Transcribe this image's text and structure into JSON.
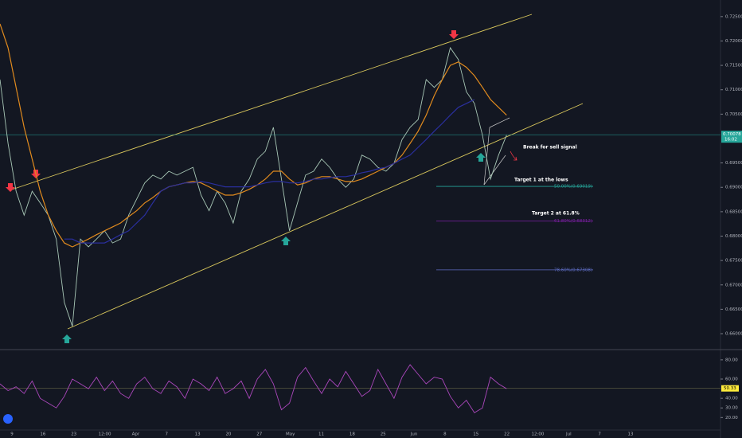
{
  "chart_data": [
    {
      "type": "line",
      "ylim": [
        0.6569,
        0.7284
      ],
      "yticks": [
        {
          "value": 0.725,
          "label": "0.72500"
        },
        {
          "value": 0.72,
          "label": "0.72000"
        },
        {
          "value": 0.715,
          "label": "0.71500"
        },
        {
          "value": 0.71,
          "label": "0.71000"
        },
        {
          "value": 0.705,
          "label": "0.70500"
        },
        {
          "value": 0.695,
          "label": "0.69500"
        },
        {
          "value": 0.69,
          "label": "0.69000"
        },
        {
          "value": 0.685,
          "label": "0.68500"
        },
        {
          "value": 0.68,
          "label": "0.68000"
        },
        {
          "value": 0.675,
          "label": "0.67500"
        },
        {
          "value": 0.67,
          "label": "0.67000"
        },
        {
          "value": 0.665,
          "label": "0.66500"
        },
        {
          "value": 0.66,
          "label": "0.66000"
        }
      ],
      "series": [
        {
          "color": "#a8c7b6",
          "values": [
            0.7121,
            0.699,
            0.6892,
            0.6843,
            0.6892,
            0.6868,
            0.6843,
            0.6794,
            0.6664,
            0.6615,
            0.6794,
            0.6778,
            0.6794,
            0.6811,
            0.6786,
            0.6794,
            0.6843,
            0.6876,
            0.6909,
            0.6925,
            0.6917,
            0.6933,
            0.6925,
            0.6933,
            0.6941,
            0.6884,
            0.6852,
            0.6892,
            0.6868,
            0.6827,
            0.6892,
            0.6917,
            0.6958,
            0.6974,
            0.7023,
            0.6917,
            0.6811,
            0.6868,
            0.6925,
            0.6933,
            0.6958,
            0.6941,
            0.6917,
            0.69,
            0.6917,
            0.6966,
            0.6958,
            0.6941,
            0.6933,
            0.6949,
            0.6998,
            0.7023,
            0.7039,
            0.7121,
            0.7105,
            0.7121,
            0.7186,
            0.7162,
            0.7096,
            0.7072,
            0.7007,
            0.6917,
            0.6966,
            0.7007
          ]
        },
        {
          "color": "#e08a1e",
          "values": [
            0.7235,
            0.7186,
            0.7105,
            0.7023,
            0.6958,
            0.6892,
            0.6843,
            0.6811,
            0.6786,
            0.6778,
            0.6786,
            0.6794,
            0.6803,
            0.6811,
            0.6819,
            0.6827,
            0.684,
            0.6852,
            0.6868,
            0.6879,
            0.6892,
            0.6901,
            0.6905,
            0.6909,
            0.6912,
            0.6909,
            0.6901,
            0.6892,
            0.6884,
            0.6884,
            0.6889,
            0.6896,
            0.6905,
            0.6917,
            0.6933,
            0.6933,
            0.6917,
            0.6905,
            0.6909,
            0.6917,
            0.6922,
            0.6922,
            0.6917,
            0.6912,
            0.6912,
            0.6917,
            0.6925,
            0.6933,
            0.6941,
            0.6949,
            0.6966,
            0.699,
            0.7015,
            0.7048,
            0.7088,
            0.7121,
            0.715,
            0.7157,
            0.7146,
            0.7129,
            0.7105,
            0.708,
            0.7064,
            0.7048
          ]
        },
        {
          "color": "#2a2f9e",
          "values": [
            null,
            null,
            null,
            null,
            null,
            null,
            null,
            null,
            0.6794,
            0.6794,
            0.6786,
            0.6786,
            0.6786,
            0.6786,
            0.6794,
            0.6803,
            0.6811,
            0.6827,
            0.6843,
            0.6868,
            0.6892,
            0.6901,
            0.6905,
            0.6909,
            0.6909,
            0.6912,
            0.6909,
            0.6905,
            0.6901,
            0.6901,
            0.6901,
            0.6901,
            0.6905,
            0.6909,
            0.6912,
            0.6912,
            0.6909,
            0.6909,
            0.6912,
            0.6917,
            0.6917,
            0.692,
            0.6922,
            0.6922,
            0.6925,
            0.693,
            0.6933,
            0.6938,
            0.6941,
            0.6949,
            0.6958,
            0.6966,
            0.6982,
            0.6998,
            0.7015,
            0.7031,
            0.7048,
            0.7064,
            0.7072,
            0.708,
            null,
            null,
            null,
            null
          ]
        }
      ],
      "last_price": {
        "value": 0.70078,
        "label": "0.70078"
      },
      "last_time": "16:02",
      "fib_levels": [
        {
          "value": 0.69019,
          "label": "50.00%(0.69019)",
          "color": "#26a69a"
        },
        {
          "value": 0.68312,
          "label": "61.80%(0.68312)",
          "color": "#7b1fa2"
        },
        {
          "value": 0.67308,
          "label": "78.60%(0.67308)",
          "color": "#5c6bc0"
        }
      ],
      "annotations": [
        "Break for sell signal",
        "Target 1 at the lows",
        "Target 2 at 61.8%"
      ]
    },
    {
      "type": "line",
      "ylim": [
        7,
        89
      ],
      "yticks": [
        {
          "value": 80,
          "label": "80.00"
        },
        {
          "value": 60,
          "label": "60.00"
        },
        {
          "value": 40,
          "label": "40.00"
        },
        {
          "value": 30,
          "label": "30.00"
        },
        {
          "value": 20,
          "label": "20.00"
        }
      ],
      "series": [
        {
          "color": "#ab47bc",
          "values": [
            55,
            48,
            52,
            45,
            58,
            40,
            35,
            30,
            42,
            60,
            55,
            50,
            62,
            48,
            58,
            45,
            40,
            55,
            62,
            50,
            45,
            58,
            52,
            40,
            60,
            55,
            48,
            62,
            45,
            50,
            58,
            40,
            60,
            70,
            55,
            28,
            35,
            62,
            72,
            58,
            45,
            60,
            52,
            68,
            55,
            42,
            48,
            70,
            55,
            40,
            62,
            75,
            65,
            55,
            62,
            60,
            42,
            30,
            38,
            25,
            30,
            62,
            55,
            50
          ]
        }
      ],
      "last_value": {
        "value": 50.33,
        "label": "50.33"
      },
      "x_labels": [
        "9",
        "16",
        "23",
        "12:00",
        "Apr",
        "7",
        "13",
        "20",
        "27",
        "May",
        "11",
        "18",
        "25",
        "Jun",
        "8",
        "15",
        "22",
        "12:00",
        "Jul",
        "7",
        "13"
      ]
    }
  ]
}
